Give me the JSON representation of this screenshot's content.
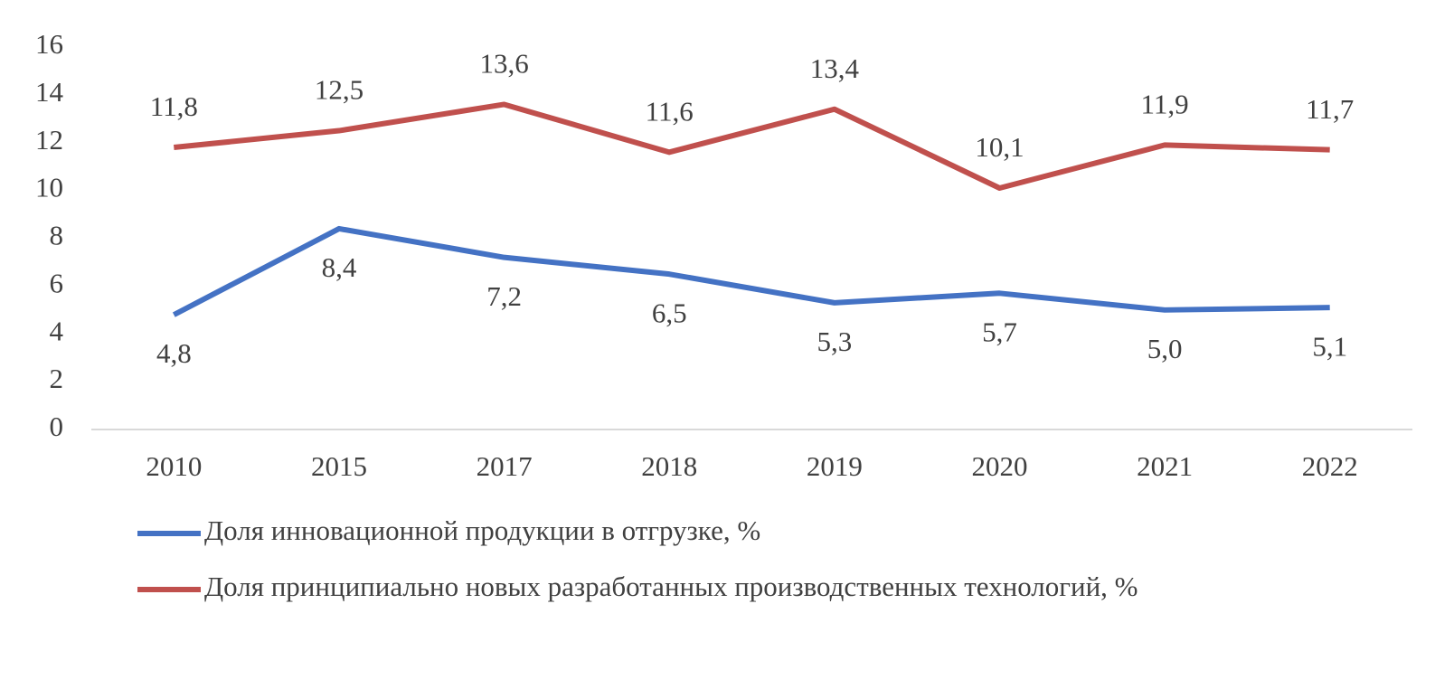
{
  "chart_data": {
    "type": "line",
    "categories": [
      "2010",
      "2015",
      "2017",
      "2018",
      "2019",
      "2020",
      "2021",
      "2022"
    ],
    "series": [
      {
        "name": "Доля инновационной продукции в отгрузке, %",
        "color": "#4472c4",
        "values": [
          4.8,
          8.4,
          7.2,
          6.5,
          5.3,
          5.7,
          5.0,
          5.1
        ],
        "value_labels": [
          "4,8",
          "8,4",
          "7,2",
          "6,5",
          "5,3",
          "5,7",
          "5,0",
          "5,1"
        ]
      },
      {
        "name": "Доля принципиально новых разработанных производственных технологий, %",
        "color": "#c0504d",
        "values": [
          11.8,
          12.5,
          13.6,
          11.6,
          13.4,
          10.1,
          11.9,
          11.7
        ],
        "value_labels": [
          "11,8",
          "12,5",
          "13,6",
          "11,6",
          "13,4",
          "10,1",
          "11,9",
          "11,7"
        ]
      }
    ],
    "ylim": [
      0,
      16
    ],
    "yticks": [
      0,
      2,
      4,
      6,
      8,
      10,
      12,
      14,
      16
    ],
    "grid": false,
    "legend": "bottom"
  }
}
